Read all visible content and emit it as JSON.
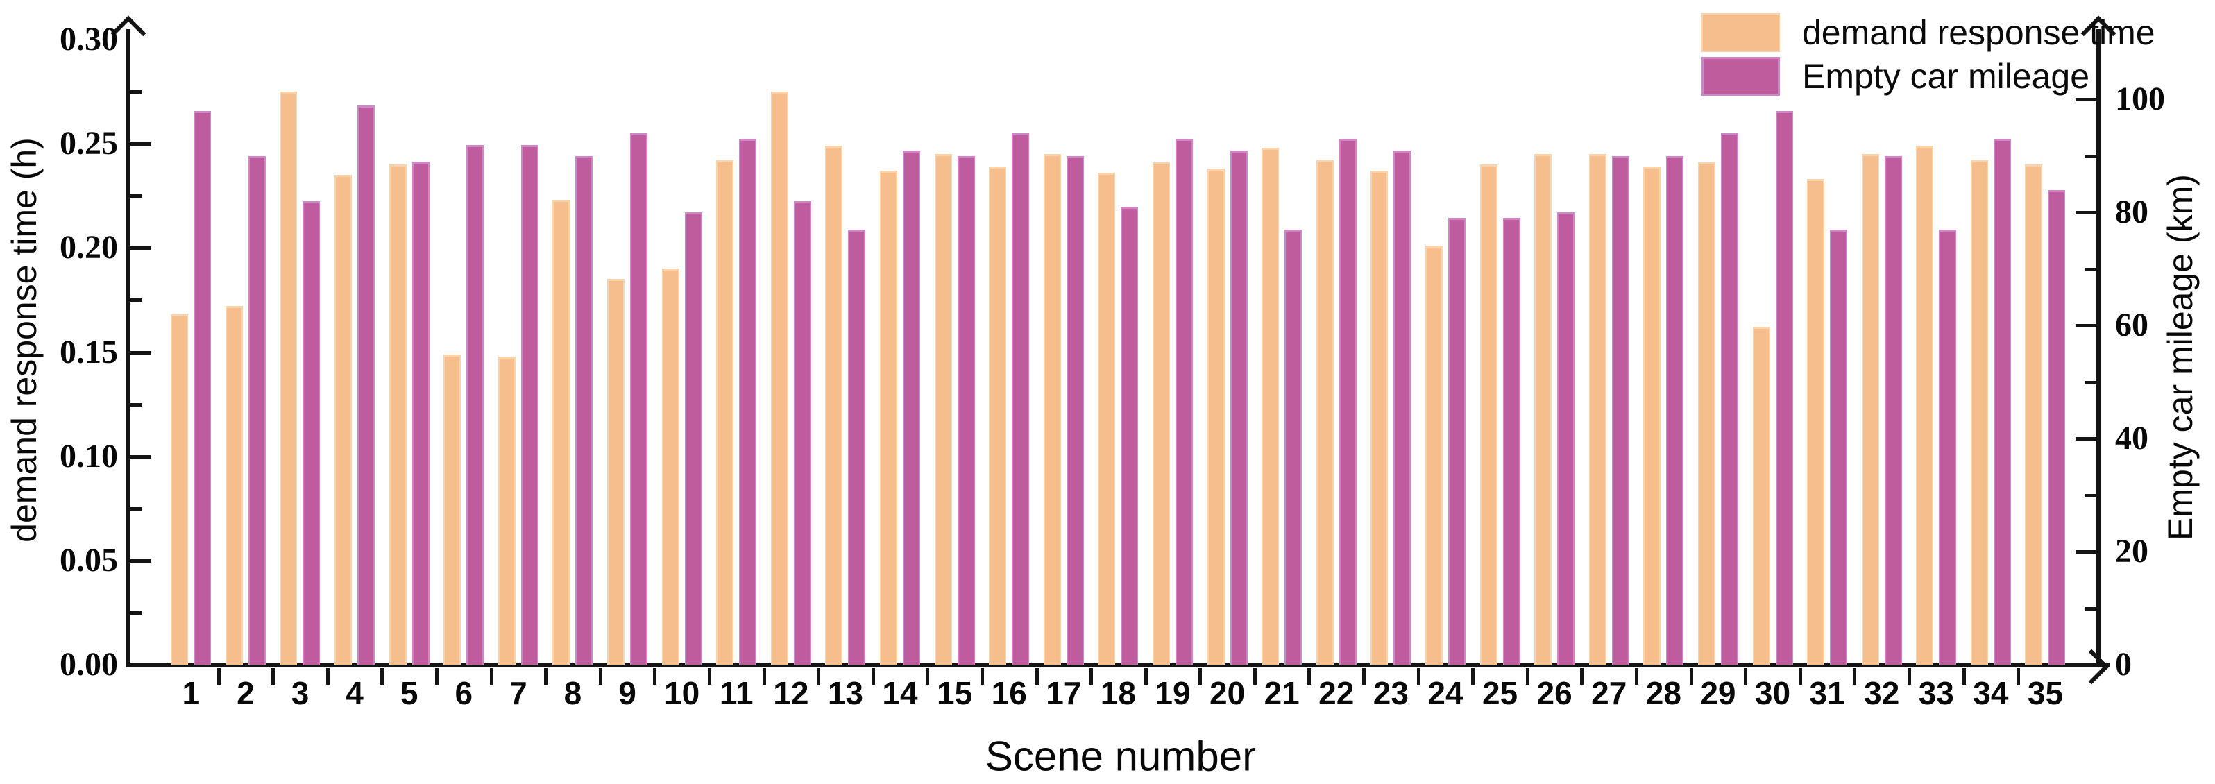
{
  "chart_data": {
    "type": "bar",
    "title": "",
    "categories": [
      "1",
      "2",
      "3",
      "4",
      "5",
      "6",
      "7",
      "8",
      "9",
      "10",
      "11",
      "12",
      "13",
      "14",
      "15",
      "16",
      "17",
      "18",
      "19",
      "20",
      "21",
      "22",
      "23",
      "24",
      "25",
      "26",
      "27",
      "28",
      "29",
      "30",
      "31",
      "32",
      "33",
      "34",
      "35"
    ],
    "series": [
      {
        "name": "demand response time",
        "axis": "left",
        "unit": "h",
        "color": "#F5BE8C",
        "edge_color": "#F9D3AC",
        "values": [
          0.168,
          0.172,
          0.275,
          0.235,
          0.24,
          0.149,
          0.148,
          0.223,
          0.185,
          0.19,
          0.242,
          0.275,
          0.249,
          0.237,
          0.245,
          0.239,
          0.245,
          0.236,
          0.241,
          0.238,
          0.248,
          0.242,
          0.237,
          0.201,
          0.24,
          0.245,
          0.245,
          0.239,
          0.241,
          0.162,
          0.233,
          0.245,
          0.249,
          0.242,
          0.24
        ]
      },
      {
        "name": "Empty car mileage",
        "axis": "right",
        "unit": "km",
        "color": "#BE5C9E",
        "edge_color": "#CD87C7",
        "values": [
          98,
          90,
          82,
          99,
          89,
          92,
          92,
          90,
          94,
          80,
          93,
          82,
          77,
          91,
          90,
          94,
          90,
          81,
          93,
          91,
          77,
          93,
          91,
          79,
          79,
          80,
          90,
          90,
          94,
          98,
          77,
          90,
          77,
          93,
          84
        ]
      }
    ],
    "left_axis": {
      "label": "demand response time (h)",
      "tick_labels": [
        "0.00",
        "0.05",
        "0.10",
        "0.15",
        "0.20",
        "0.25",
        "0.30"
      ],
      "range": [
        0,
        0.3
      ],
      "major_step": 0.05,
      "minor_step": 0.025
    },
    "right_axis": {
      "label": "Empty car mileage (km)",
      "tick_labels": [
        "0",
        "20",
        "40",
        "60",
        "80",
        "100"
      ],
      "range": [
        0,
        110.6
      ],
      "major_step": 20,
      "minor_step": 10
    },
    "x_axis": {
      "label": "Scene number"
    },
    "legend": {
      "position": "top-right",
      "entries": [
        "demand response time",
        "Empty car mileage"
      ]
    },
    "grid": "off",
    "background": "#ffffff"
  }
}
